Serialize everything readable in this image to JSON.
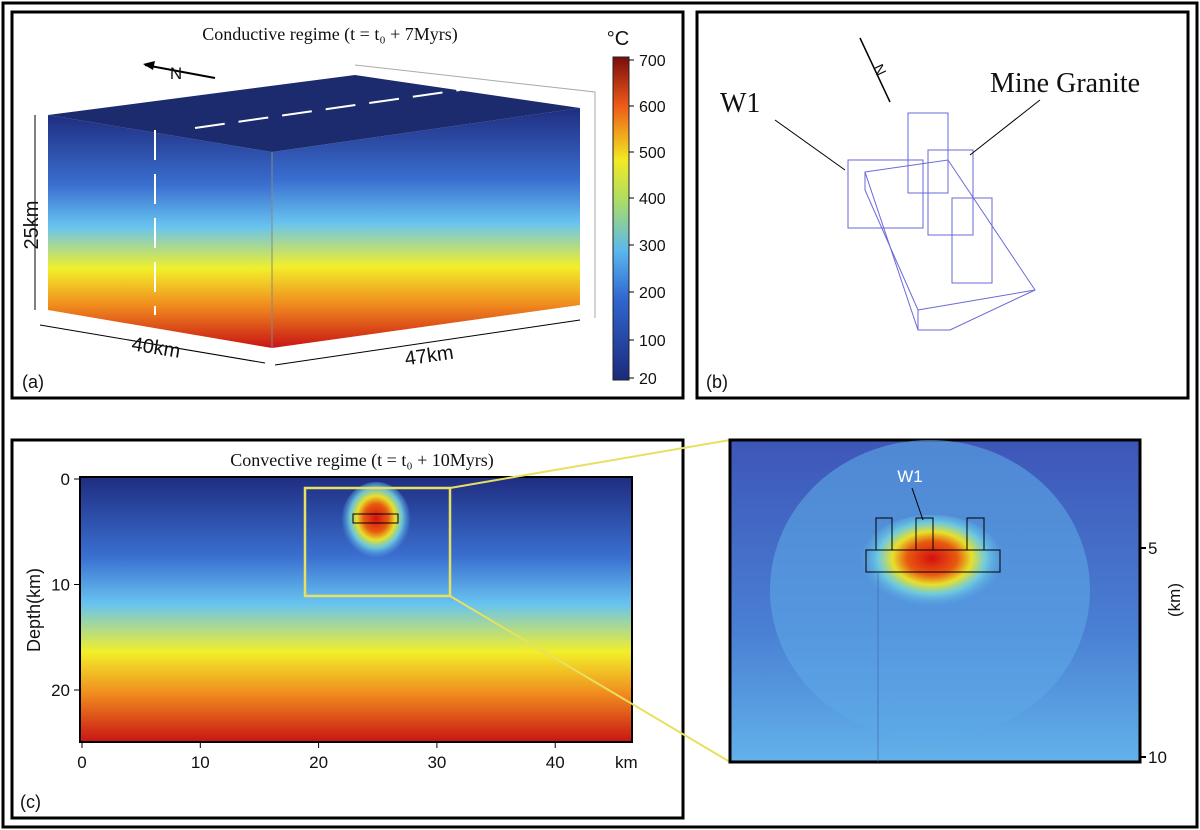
{
  "panel_a": {
    "title": "Conductive regime (t = t₀ + 7Myrs)",
    "label": "(a)",
    "north": "N",
    "depth": "25km",
    "width_left": "40km",
    "width_right": "47km",
    "colorbar_unit": "°C",
    "colorbar_ticks": [
      "700",
      "600",
      "500",
      "400",
      "300",
      "200",
      "100",
      "20"
    ]
  },
  "panel_b": {
    "label": "(b)",
    "north": "N",
    "well": "W1",
    "granite": "Mine Granite"
  },
  "panel_c": {
    "title": "Convective regime (t = t₀ + 10Myrs)",
    "label": "(c)",
    "y_label": "Depth(km)",
    "x_ticks": [
      "0",
      "10",
      "20",
      "30",
      "40"
    ],
    "x_unit": "km",
    "y_ticks": [
      "0",
      "10",
      "20"
    ]
  },
  "zoom": {
    "well": "W1",
    "y_ticks": [
      "5",
      "10"
    ],
    "y_unit": "(km)"
  }
}
